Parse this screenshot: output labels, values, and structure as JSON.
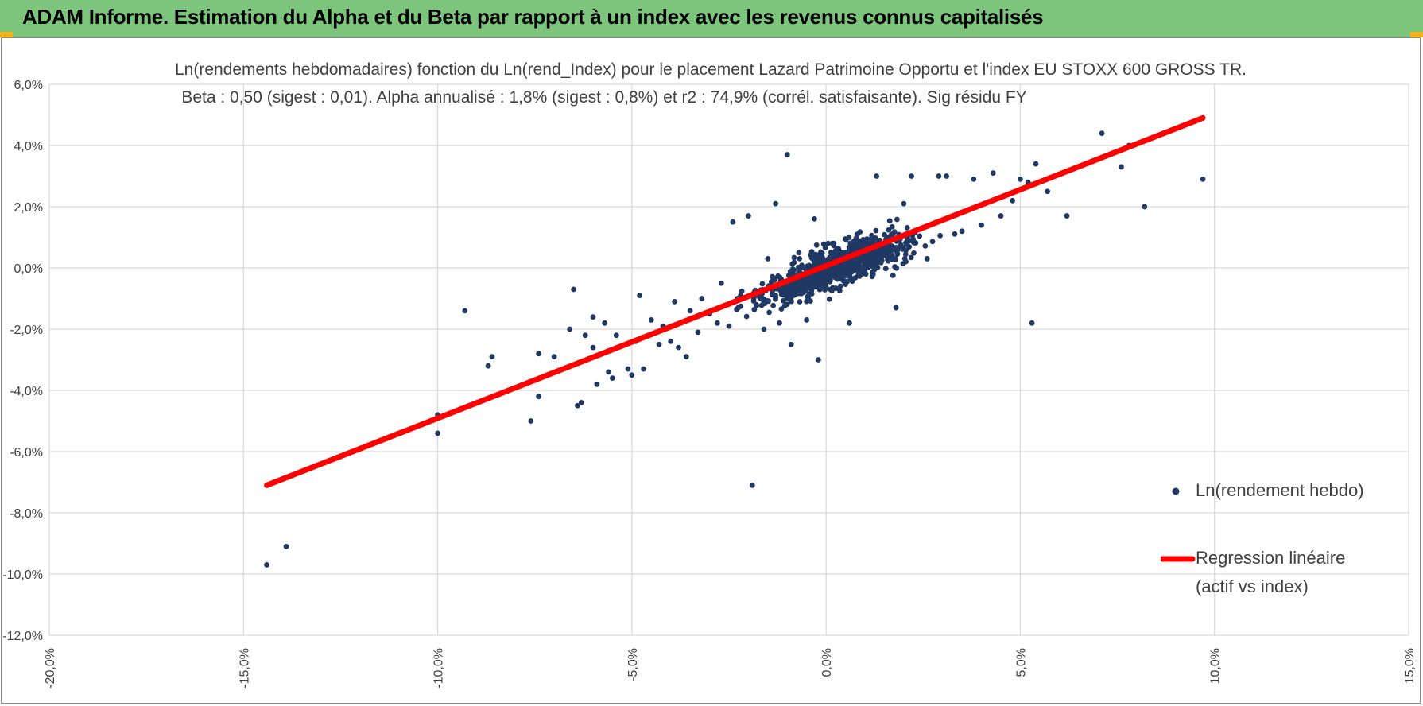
{
  "header": {
    "title": "ADAM Informe. Estimation du Alpha et du Beta par rapport à un index avec les revenus connus capitalisés"
  },
  "colors": {
    "header_bg": "#7dc57d",
    "points": "#203864",
    "regression": "#ff0000",
    "grid": "#d9d9d9",
    "text": "#404040"
  },
  "chart_data": {
    "type": "scatter",
    "title": "Ln(rendements hebdomadaires) fonction du Ln(rend_Index) pour le placement Lazard Patrimoine Opportu et l'index EU STOXX 600 GROSS TR.",
    "subtitle": "Beta : 0,50 (sigest : 0,01). Alpha annualisé : 1,8% (sigest : 0,8%) et r2 : 74,9% (corrél. satisfaisante). Sig résidu FY",
    "xlabel": "",
    "ylabel": "",
    "xlim": [
      -20,
      15
    ],
    "ylim": [
      -12,
      6
    ],
    "x_ticks": [
      "-20,0%",
      "-15,0%",
      "-10,0%",
      "-5,0%",
      "0,0%",
      "5,0%",
      "10,0%",
      "15,0%"
    ],
    "y_ticks": [
      "6,0%",
      "4,0%",
      "2,0%",
      "0,0%",
      "-2,0%",
      "-4,0%",
      "-6,0%",
      "-8,0%",
      "-10,0%",
      "-12,0%"
    ],
    "grid": true,
    "legend_position": "right",
    "series": [
      {
        "name": "Ln(rendement hebdo)",
        "kind": "points",
        "points": [
          [
            -14.4,
            -9.7
          ],
          [
            -13.9,
            -9.1
          ],
          [
            -14.0,
            -6.9
          ],
          [
            -10.0,
            -4.8
          ],
          [
            -10.0,
            -5.4
          ],
          [
            -9.3,
            -1.4
          ],
          [
            -8.6,
            -2.9
          ],
          [
            -8.7,
            -3.2
          ],
          [
            -7.6,
            -5.0
          ],
          [
            -7.4,
            -4.2
          ],
          [
            -7.4,
            -2.8
          ],
          [
            -7.0,
            -2.9
          ],
          [
            -6.6,
            -2.0
          ],
          [
            -6.5,
            -0.7
          ],
          [
            -6.4,
            -4.5
          ],
          [
            -6.3,
            -4.4
          ],
          [
            -6.2,
            -2.2
          ],
          [
            -6.0,
            -1.6
          ],
          [
            -6.0,
            -2.6
          ],
          [
            -5.9,
            -3.8
          ],
          [
            -5.7,
            -1.8
          ],
          [
            -5.6,
            -3.4
          ],
          [
            -5.5,
            -3.6
          ],
          [
            -5.4,
            -2.2
          ],
          [
            -5.1,
            -3.3
          ],
          [
            -5.0,
            -3.5
          ],
          [
            -4.9,
            -2.4
          ],
          [
            -4.8,
            -0.9
          ],
          [
            -4.7,
            -3.3
          ],
          [
            -4.5,
            -1.7
          ],
          [
            -4.3,
            -2.5
          ],
          [
            -4.2,
            -1.9
          ],
          [
            -4.0,
            -2.4
          ],
          [
            -3.9,
            -1.1
          ],
          [
            -3.8,
            -2.6
          ],
          [
            -3.6,
            -2.9
          ],
          [
            -3.5,
            -1.4
          ],
          [
            -3.3,
            -2.1
          ],
          [
            -3.2,
            -1.0
          ],
          [
            -3.0,
            -1.5
          ],
          [
            -2.8,
            -1.8
          ],
          [
            -2.7,
            -0.5
          ],
          [
            -2.5,
            -1.9
          ],
          [
            -2.4,
            1.5
          ],
          [
            -2.2,
            -0.9
          ],
          [
            -2.0,
            1.7
          ],
          [
            -1.9,
            -7.1
          ],
          [
            -1.8,
            -1.2
          ],
          [
            -1.6,
            -2.0
          ],
          [
            -1.5,
            0.3
          ],
          [
            -1.3,
            2.1
          ],
          [
            -1.2,
            -1.8
          ],
          [
            -1.0,
            3.7
          ],
          [
            -0.9,
            -2.5
          ],
          [
            -0.7,
            0.5
          ],
          [
            -0.5,
            -1.7
          ],
          [
            -0.3,
            1.6
          ],
          [
            -0.2,
            -3.0
          ],
          [
            0.0,
            -0.4
          ],
          [
            0.2,
            0.8
          ],
          [
            0.4,
            0.5
          ],
          [
            0.6,
            -1.8
          ],
          [
            0.8,
            1.1
          ],
          [
            1.0,
            0.7
          ],
          [
            1.3,
            3.0
          ],
          [
            1.5,
            0.6
          ],
          [
            1.8,
            -1.3
          ],
          [
            2.0,
            2.1
          ],
          [
            2.2,
            3.0
          ],
          [
            2.6,
            0.3
          ],
          [
            2.9,
            3.0
          ],
          [
            3.1,
            3.0
          ],
          [
            3.5,
            1.2
          ],
          [
            3.8,
            2.9
          ],
          [
            4.0,
            1.4
          ],
          [
            4.3,
            3.1
          ],
          [
            4.5,
            1.7
          ],
          [
            4.8,
            2.2
          ],
          [
            5.0,
            2.9
          ],
          [
            5.2,
            2.8
          ],
          [
            5.3,
            -1.8
          ],
          [
            5.4,
            3.4
          ],
          [
            5.7,
            2.5
          ],
          [
            6.2,
            1.7
          ],
          [
            7.1,
            4.4
          ],
          [
            7.6,
            3.3
          ],
          [
            7.8,
            4.0
          ],
          [
            8.2,
            2.0
          ],
          [
            9.7,
            2.9
          ]
        ]
      },
      {
        "name": "Regression linéaire (actif vs index)",
        "kind": "line",
        "points": [
          [
            -14.4,
            -7.1
          ],
          [
            9.7,
            4.9
          ]
        ]
      }
    ],
    "legend": {
      "points_label": "Ln(rendement hebdo)",
      "line_label_1": "Regression linéaire",
      "line_label_2": "(actif vs index)"
    }
  }
}
